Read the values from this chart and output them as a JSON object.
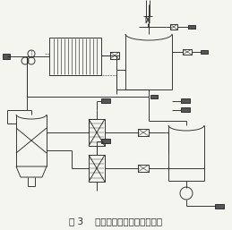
{
  "title": "图 3    膜法脱硝预处理工艺流程图",
  "bg_color": "#f5f5f0",
  "line_color": "#2a2a2a",
  "title_fontsize": 7.5,
  "fig_width": 2.59,
  "fig_height": 2.57,
  "dpi": 100
}
